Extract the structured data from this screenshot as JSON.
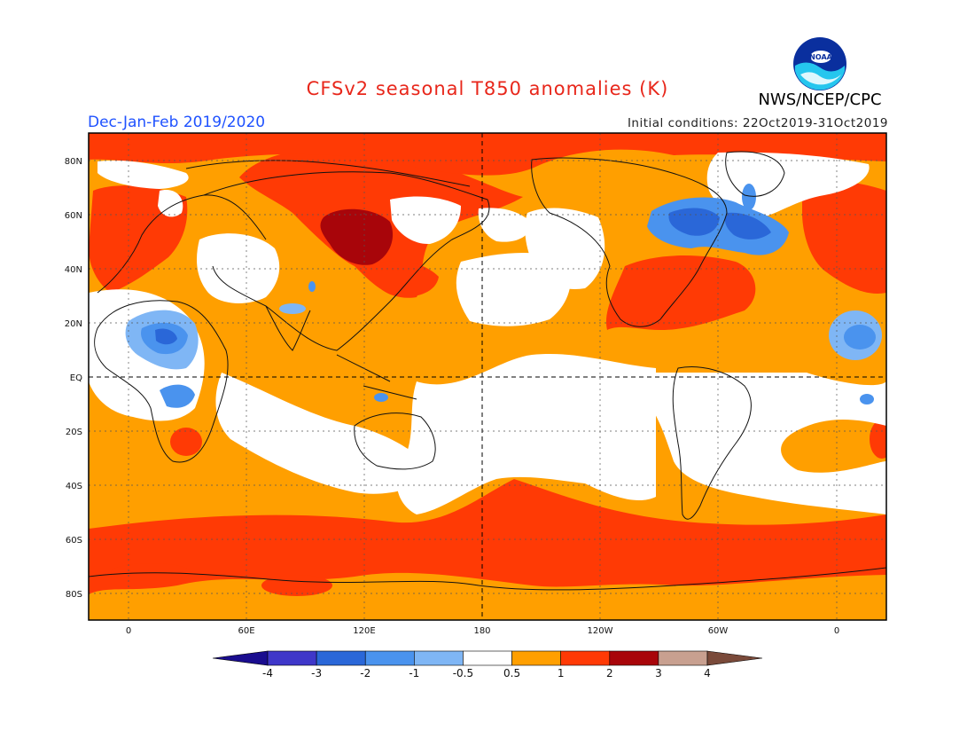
{
  "title": "CFSv2 seasonal T850 anomalies (K)",
  "agency": "NWS/NCEP/CPC",
  "logo_text": "NOAA",
  "season": "Dec-Jan-Feb 2019/2020",
  "initial_conditions": "Initial conditions: 22Oct2019-31Oct2019",
  "lat_labels": [
    "80N",
    "60N",
    "40N",
    "20N",
    "EQ",
    "20S",
    "40S",
    "60S",
    "80S"
  ],
  "lon_labels": [
    "0",
    "60E",
    "120E",
    "180",
    "120W",
    "60W",
    "0"
  ],
  "colorbar": {
    "labels": [
      "-4",
      "-3",
      "-2",
      "-1",
      "-0.5",
      "0.5",
      "1",
      "2",
      "3",
      "4"
    ],
    "colors": [
      "#1a0d8f",
      "#3f37c9",
      "#2a67d8",
      "#4a93ee",
      "#7fb6f5",
      "#ffffff",
      "#ff9f00",
      "#ff3a05",
      "#a8050a",
      "#c8a090",
      "#7a4a3a"
    ]
  },
  "colors": {
    "title": "#e8271b",
    "season": "#1f52ff",
    "background_anomaly": "#ff9f00"
  }
}
